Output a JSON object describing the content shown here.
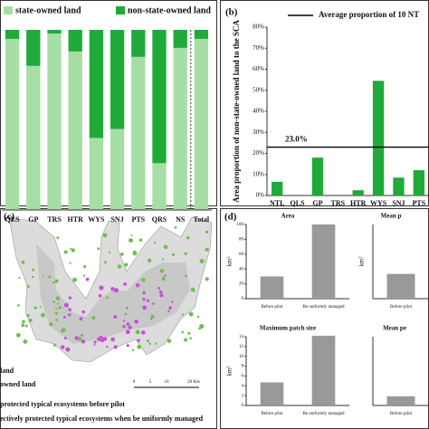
{
  "chart_data": [
    {
      "type": "stacked_bar",
      "categories": [
        "QLS",
        "GP",
        "TRS",
        "HTR",
        "WYS",
        "SNJ",
        "PTS",
        "QRS",
        "NS",
        "Total"
      ],
      "series": [
        {
          "name": "state-owned land",
          "color": "#a6dea6",
          "values": [
            95,
            80,
            98,
            88,
            40,
            45,
            85,
            26,
            90,
            95
          ]
        },
        {
          "name": "non-state-owned land",
          "color": "#1faa3a",
          "values": [
            5,
            20,
            2,
            12,
            60,
            55,
            15,
            74,
            10,
            5
          ]
        }
      ],
      "ylim": [
        0,
        100
      ]
    },
    {
      "type": "bar",
      "panel_label": "(b)",
      "ylabel": "Area proportion of non-state-owned land to the SCA",
      "categories": [
        "NTL",
        "QLS",
        "GP",
        "TRS",
        "HTR",
        "WYS",
        "SNJ",
        "PTS"
      ],
      "values": [
        6.5,
        0,
        18,
        0,
        2.5,
        54.5,
        8.5,
        12
      ],
      "color": "#1faa3a",
      "ylim": [
        0,
        80
      ],
      "yticks": [
        {
          "value": 0,
          "label": "0%"
        },
        {
          "value": 10,
          "label": "10%"
        },
        {
          "value": 20,
          "label": "20%"
        },
        {
          "value": 30,
          "label": "30%"
        },
        {
          "value": 40,
          "label": "40%"
        },
        {
          "value": 50,
          "label": "50%"
        },
        {
          "value": 60,
          "label": "60%"
        },
        {
          "value": 70,
          "label": "70%"
        },
        {
          "value": 80,
          "label": "80%"
        }
      ],
      "reference_line": {
        "name": "Average proportion of 10 NT",
        "value": 23.0,
        "label": "23.0%"
      }
    },
    {
      "type": "bar",
      "panel_label": "(d)",
      "title": "Area",
      "ylabel": "km²",
      "categories": [
        "Before pilot",
        "Be uniformly managed"
      ],
      "values": [
        30,
        100
      ],
      "color": "#999999",
      "ylim": [
        0,
        100
      ],
      "yticks": [
        0,
        20,
        40,
        60,
        80,
        100
      ]
    },
    {
      "type": "bar",
      "title": "Mean p",
      "ylabel": "km²",
      "categories": [
        "Before pilot"
      ],
      "values": [
        0.1
      ],
      "color": "#999999",
      "ylim": [
        0,
        0.3
      ]
    },
    {
      "type": "bar",
      "title": "Maximum patch size",
      "ylabel": "km²",
      "categories": [
        "Before pilot",
        "Be uniformly managed"
      ],
      "values": [
        4.7,
        14.2
      ],
      "color": "#999999",
      "ylim": [
        0,
        14
      ],
      "yticks": [
        0,
        2,
        4,
        6,
        8,
        10,
        12,
        14
      ]
    },
    {
      "type": "bar",
      "title": "Mean pe",
      "categories": [
        "Before pilot"
      ],
      "values": [
        0.2
      ],
      "color": "#999999",
      "ylim": [
        0,
        1.5
      ]
    }
  ],
  "map": {
    "panel_label": "(c)",
    "legend": [
      "land",
      "owned land",
      "protected typical ecosystems before pilot",
      "ectively protected typical ecosystems  when be uniformly managed"
    ],
    "scale": [
      "0",
      "5",
      "10",
      "20 Km"
    ]
  }
}
